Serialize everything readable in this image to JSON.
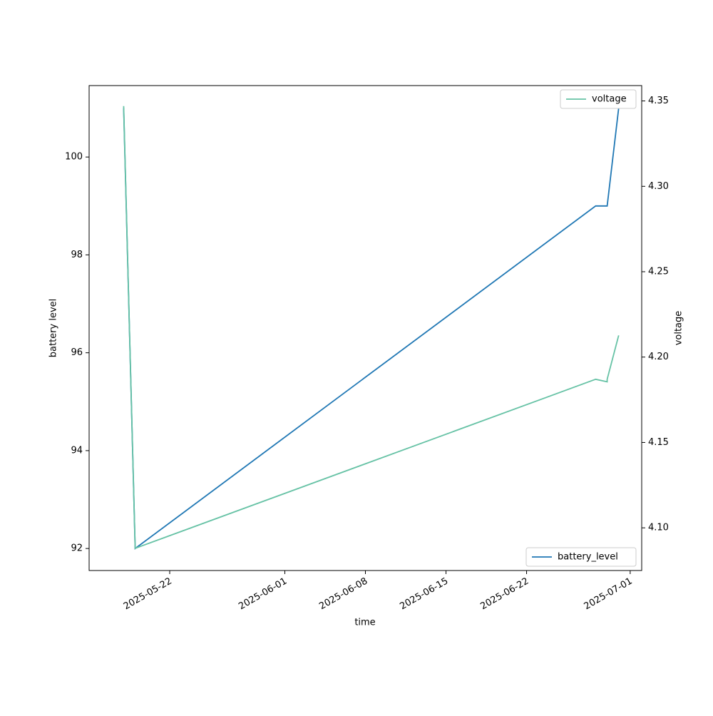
{
  "chart_data": {
    "type": "line",
    "xlabel": "time",
    "ylabel": "battery level",
    "y2label": "voltage",
    "x": [
      "2025-05-18",
      "2025-05-19",
      "2025-06-28",
      "2025-06-29",
      "2025-06-29",
      "2025-06-30"
    ],
    "series": [
      {
        "name": "battery_level",
        "color": "#1f77b4",
        "axis": "y",
        "legend_loc": "lower right",
        "values": [
          101,
          92,
          99,
          99,
          99,
          101
        ]
      },
      {
        "name": "voltage",
        "color": "#66c2a5",
        "axis": "y2",
        "legend_loc": "upper right",
        "values": [
          4.347,
          4.088,
          4.187,
          4.1855,
          4.187,
          4.2127
        ]
      }
    ],
    "xlim": [
      "2025-05-15",
      "2025-07-02"
    ],
    "xticks": [
      "2025-05-22",
      "2025-06-01",
      "2025-06-08",
      "2025-06-15",
      "2025-06-22",
      "2025-07-01"
    ],
    "ylim": [
      91.55,
      101.46
    ],
    "yticks": [
      92,
      94,
      96,
      98,
      100
    ],
    "y2lim": [
      4.075,
      4.359
    ],
    "y2ticks": [
      {
        "value": 4.1,
        "label": "4.10"
      },
      {
        "value": 4.15,
        "label": "4.15"
      },
      {
        "value": 4.2,
        "label": "4.20"
      },
      {
        "value": 4.25,
        "label": "4.25"
      },
      {
        "value": 4.3,
        "label": "4.30"
      },
      {
        "value": 4.35,
        "label": "4.35"
      }
    ],
    "grid": false
  }
}
